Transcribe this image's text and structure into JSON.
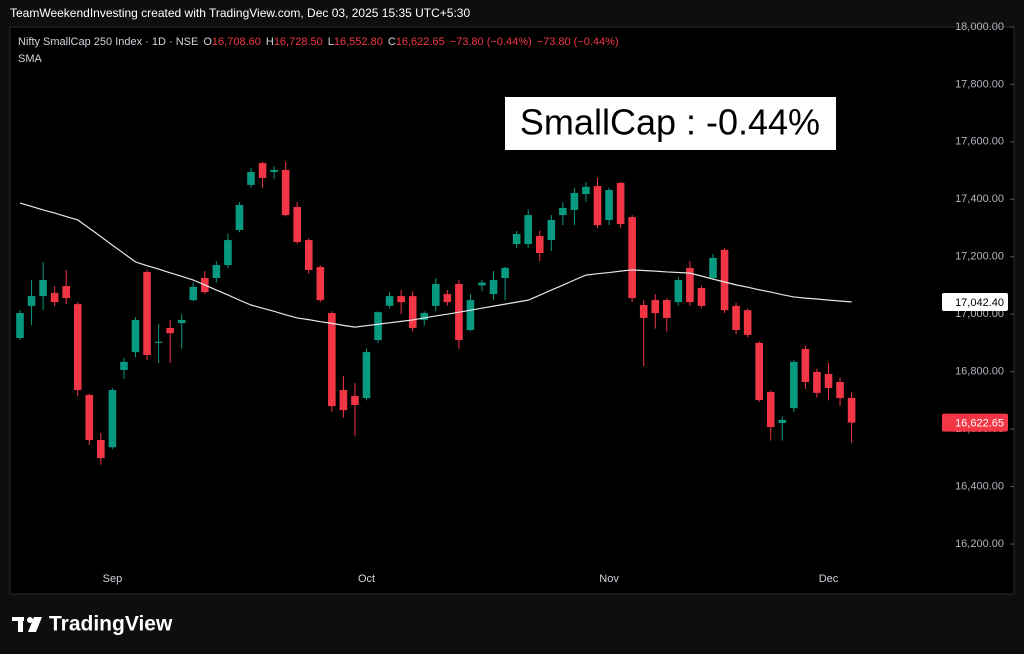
{
  "header": {
    "text": "TeamWeekendInvesting created with TradingView.com, Dec 03, 2025 15:35 UTC+5:30"
  },
  "chart_data": {
    "type": "candlestick",
    "info_line": [
      {
        "text": "Nifty SmallCap 250 Index · 1D · NSE",
        "color": "#d1d4dc"
      },
      {
        "text": "O",
        "color": "#d1d4dc"
      },
      {
        "text": "16,708.60",
        "color": "#f23645"
      },
      {
        "text": "H",
        "color": "#d1d4dc"
      },
      {
        "text": "16,728.50",
        "color": "#f23645"
      },
      {
        "text": "L",
        "color": "#d1d4dc"
      },
      {
        "text": "16,552.80",
        "color": "#f23645"
      },
      {
        "text": "C",
        "color": "#d1d4dc"
      },
      {
        "text": "16,622.65",
        "color": "#f23645"
      },
      {
        "text": "−73.80 (−0.44%)",
        "color": "#f23645"
      },
      {
        "text": "−73.80 (−0.44%)",
        "color": "#f23645"
      }
    ],
    "annotation": "SmallCap : -0.44%",
    "up_color": "#089981",
    "down_color": "#f23645",
    "categories": [
      null,
      null,
      null,
      null,
      null,
      null,
      null,
      null,
      "Sep",
      null,
      null,
      null,
      null,
      null,
      null,
      null,
      null,
      null,
      null,
      null,
      null,
      null,
      null,
      null,
      null,
      null,
      null,
      null,
      null,
      null,
      "Oct",
      null,
      null,
      null,
      null,
      null,
      null,
      null,
      null,
      null,
      null,
      null,
      null,
      null,
      null,
      null,
      null,
      null,
      null,
      null,
      null,
      "Nov",
      null,
      null,
      null,
      null,
      null,
      null,
      null,
      null,
      null,
      null,
      null,
      null,
      null,
      null,
      null,
      null,
      null,
      null,
      "Dec",
      null,
      null
    ],
    "open": [
      16917,
      17029,
      17063,
      17074,
      17098,
      17035,
      16719,
      16562,
      16537,
      16806,
      16868,
      17147,
      16900,
      16952,
      16969,
      17049,
      17126,
      17126,
      17171,
      17293,
      17450,
      17526,
      17495,
      17502,
      17373,
      17258,
      17164,
      17004,
      16736,
      16715,
      16708,
      16910,
      17029,
      17063,
      17063,
      16980,
      17029,
      17070,
      17105,
      16945,
      17100,
      17070,
      17126,
      17244,
      17244,
      17272,
      17258,
      17345,
      17363,
      17418,
      17446,
      17328,
      17457,
      17338,
      17032,
      17049,
      17049,
      17042,
      17161,
      17091,
      17126,
      17224,
      17029,
      17014,
      16900,
      16729,
      16621,
      16673,
      16879,
      16799,
      16792,
      16764,
      16708.6
    ],
    "high": [
      17014,
      17119,
      17182,
      17098,
      17154,
      17042,
      16722,
      16587,
      16743,
      16848,
      16990,
      17154,
      16966,
      16980,
      17000,
      17110,
      17150,
      17185,
      17280,
      17390,
      17510,
      17530,
      17515,
      17530,
      17390,
      17265,
      17170,
      17010,
      16785,
      16760,
      16880,
      17010,
      17077,
      17084,
      17080,
      17010,
      17126,
      17084,
      17120,
      17070,
      17120,
      17150,
      17165,
      17290,
      17365,
      17290,
      17345,
      17390,
      17440,
      17460,
      17475,
      17440,
      17460,
      17345,
      17049,
      17070,
      17056,
      17130,
      17185,
      17098,
      17210,
      17230,
      17040,
      17020,
      16905,
      16735,
      16645,
      16840,
      16890,
      16810,
      16830,
      16780,
      16728.5
    ],
    "low": [
      16910,
      16962,
      17014,
      17028,
      17035,
      16715,
      16545,
      16476,
      16530,
      16774,
      16850,
      16840,
      16830,
      16830,
      16880,
      17045,
      17070,
      17110,
      17160,
      17285,
      17440,
      17440,
      17470,
      17340,
      17245,
      17140,
      17042,
      16660,
      16640,
      16575,
      16700,
      16900,
      17020,
      17000,
      16940,
      16960,
      17010,
      17030,
      16880,
      16940,
      17080,
      17050,
      17049,
      17230,
      17230,
      17185,
      17220,
      17310,
      17310,
      17390,
      17300,
      17310,
      17300,
      17042,
      16820,
      16950,
      16940,
      17030,
      17030,
      17020,
      17120,
      17004,
      16930,
      16920,
      16695,
      16560,
      16560,
      16660,
      16740,
      16710,
      16700,
      16680,
      16552.8
    ],
    "close": [
      17004,
      17063,
      17119,
      17042,
      17056,
      16736,
      16562,
      16499,
      16736,
      16834,
      16980,
      16858,
      16904,
      16934,
      16980,
      17095,
      17077,
      17171,
      17258,
      17380,
      17495,
      17474,
      17502,
      17345,
      17251,
      17154,
      17049,
      16680,
      16666,
      16684,
      16868,
      17007,
      17063,
      17042,
      16952,
      17004,
      17105,
      17042,
      16910,
      17049,
      17110,
      17119,
      17161,
      17279,
      17345,
      17213,
      17328,
      17370,
      17422,
      17443,
      17310,
      17432,
      17314,
      17056,
      16987,
      17004,
      16987,
      17119,
      17042,
      17029,
      17196,
      17014,
      16945,
      16928,
      16701,
      16607,
      16632,
      16834,
      16764,
      16726,
      16743,
      16708,
      16622.65
    ],
    "sma": {
      "name": "SMA",
      "color": "#e6e6e6",
      "values": [
        17387,
        17375,
        17363,
        17352,
        17340,
        17328,
        17299,
        17270,
        17240,
        17211,
        17182,
        17169,
        17157,
        17144,
        17132,
        17119,
        17102,
        17084,
        17067,
        17049,
        17032,
        17021,
        17010,
        16998,
        16987,
        16981,
        16974,
        16968,
        16961,
        16955,
        16960,
        16965,
        16970,
        16975,
        16980,
        16987,
        16994,
        17000,
        17007,
        17014,
        17021,
        17028,
        17035,
        17042,
        17049,
        17066,
        17084,
        17101,
        17119,
        17136,
        17141,
        17145,
        17150,
        17154,
        17152,
        17150,
        17147,
        17145,
        17143,
        17133,
        17122,
        17112,
        17102,
        17094,
        17085,
        17077,
        17068,
        17060,
        17056,
        17053,
        17049,
        17046,
        17042.4
      ]
    },
    "ylim": [
      16033,
      18031
    ],
    "yticks": [
      {
        "value": 16200,
        "label": "16,200.00"
      },
      {
        "value": 16400,
        "label": "16,400.00"
      },
      {
        "value": 16600,
        "label": "16,600.00"
      },
      {
        "value": 16800,
        "label": "16,800.00"
      },
      {
        "value": 17000,
        "label": "17,000.00"
      },
      {
        "value": 17200,
        "label": "17,200.00"
      },
      {
        "value": 17400,
        "label": "17,400.00"
      },
      {
        "value": 17600,
        "label": "17,600.00"
      },
      {
        "value": 17800,
        "label": "17,800.00"
      },
      {
        "value": 18000,
        "label": "18,000.00"
      }
    ],
    "grid": false,
    "price_labels": [
      {
        "value": 17042.4,
        "label": "17,042.40",
        "bg": "#ffffff",
        "fg": "#000000"
      },
      {
        "value": 16622.65,
        "label": "16,622.65",
        "bg": "#f23645",
        "fg": "#ffffff"
      }
    ]
  },
  "footer": {
    "brand": "TradingView"
  }
}
